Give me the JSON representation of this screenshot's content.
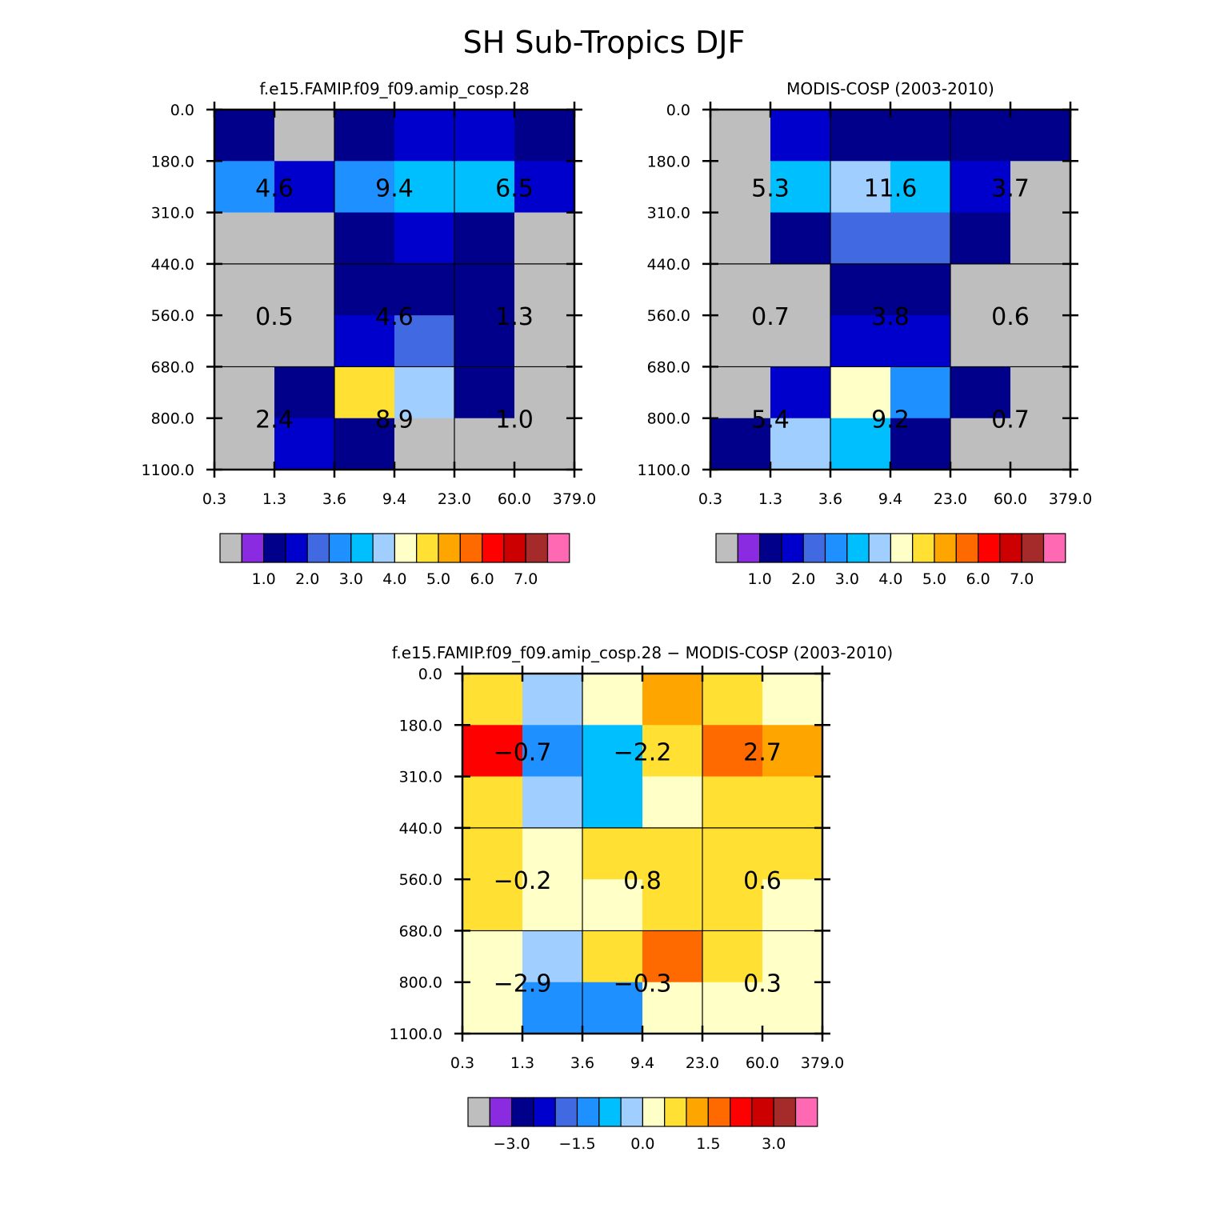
{
  "page_title": "SH Sub-Tropics DJF",
  "colors": {
    "missing": "#bebebe",
    "palette": [
      "#8a2be2",
      "#00008b",
      "#0000cd",
      "#4169e1",
      "#1e90ff",
      "#00bfff",
      "#a0cfff",
      "#ffffc8",
      "#ffe033",
      "#ffa500",
      "#ff6a00",
      "#ff0000",
      "#cc0000",
      "#a52a2a",
      "#ff69b4"
    ]
  },
  "chart_data": [
    {
      "type": "heatmap",
      "title": "f.e15.FAMIP.f09_f09.amip_cosp.28",
      "x_tick_labels": [
        "0.3",
        "1.3",
        "3.6",
        "9.4",
        "23.0",
        "60.0",
        "379.0"
      ],
      "y_tick_labels": [
        "0.0",
        "180.0",
        "310.0",
        "440.0",
        "560.0",
        "680.0",
        "800.0",
        "1100.0"
      ],
      "cells": [
        [
          1,
          -1,
          1,
          2,
          2,
          1
        ],
        [
          4,
          2,
          4,
          5,
          5,
          2
        ],
        [
          -1,
          -1,
          1,
          2,
          1,
          -1
        ],
        [
          -1,
          -1,
          1,
          1,
          1,
          -1
        ],
        [
          -1,
          -1,
          2,
          3,
          1,
          -1
        ],
        [
          -1,
          1,
          8,
          6,
          1,
          -1
        ],
        [
          -1,
          2,
          1,
          -1,
          -1,
          -1
        ]
      ],
      "cell_values_note": "palette indices (0=purple ... 14=pink); -1 = missing/grey",
      "group_labels": [
        {
          "row": 0,
          "col": 0,
          "text": "4.6"
        },
        {
          "row": 0,
          "col": 1,
          "text": "9.4"
        },
        {
          "row": 0,
          "col": 2,
          "text": "6.5"
        },
        {
          "row": 1,
          "col": 0,
          "text": "0.5"
        },
        {
          "row": 1,
          "col": 1,
          "text": "4.6"
        },
        {
          "row": 1,
          "col": 2,
          "text": "1.3"
        },
        {
          "row": 2,
          "col": 0,
          "text": "2.4"
        },
        {
          "row": 2,
          "col": 1,
          "text": "8.9"
        },
        {
          "row": 2,
          "col": 2,
          "text": "1.0"
        }
      ],
      "colorbar_labels": [
        "1.0",
        "2.0",
        "3.0",
        "4.0",
        "5.0",
        "6.0",
        "7.0"
      ]
    },
    {
      "type": "heatmap",
      "title": "MODIS-COSP (2003-2010)",
      "x_tick_labels": [
        "0.3",
        "1.3",
        "3.6",
        "9.4",
        "23.0",
        "60.0",
        "379.0"
      ],
      "y_tick_labels": [
        "0.0",
        "180.0",
        "310.0",
        "440.0",
        "560.0",
        "680.0",
        "800.0",
        "1100.0"
      ],
      "cells": [
        [
          -1,
          2,
          1,
          1,
          1,
          1
        ],
        [
          -1,
          5,
          6,
          5,
          2,
          -1
        ],
        [
          -1,
          1,
          3,
          3,
          1,
          -1
        ],
        [
          -1,
          -1,
          1,
          1,
          -1,
          -1
        ],
        [
          -1,
          -1,
          2,
          2,
          -1,
          -1
        ],
        [
          -1,
          2,
          7,
          4,
          1,
          -1
        ],
        [
          1,
          6,
          5,
          1,
          -1,
          -1
        ]
      ],
      "cell_values_note": "palette indices (0=purple ... 14=pink); -1 = missing/grey",
      "group_labels": [
        {
          "row": 0,
          "col": 0,
          "text": "5.3"
        },
        {
          "row": 0,
          "col": 1,
          "text": "11.6"
        },
        {
          "row": 0,
          "col": 2,
          "text": "3.7"
        },
        {
          "row": 1,
          "col": 0,
          "text": "0.7"
        },
        {
          "row": 1,
          "col": 1,
          "text": "3.8"
        },
        {
          "row": 1,
          "col": 2,
          "text": "0.6"
        },
        {
          "row": 2,
          "col": 0,
          "text": "5.4"
        },
        {
          "row": 2,
          "col": 1,
          "text": "9.2"
        },
        {
          "row": 2,
          "col": 2,
          "text": "0.7"
        }
      ],
      "colorbar_labels": [
        "1.0",
        "2.0",
        "3.0",
        "4.0",
        "5.0",
        "6.0",
        "7.0"
      ]
    },
    {
      "type": "heatmap",
      "title": "f.e15.FAMIP.f09_f09.amip_cosp.28 − MODIS-COSP (2003-2010)",
      "x_tick_labels": [
        "0.3",
        "1.3",
        "3.6",
        "9.4",
        "23.0",
        "60.0",
        "379.0"
      ],
      "y_tick_labels": [
        "0.0",
        "180.0",
        "310.0",
        "440.0",
        "560.0",
        "680.0",
        "800.0",
        "1100.0"
      ],
      "cells": [
        [
          8,
          6,
          7,
          9,
          8,
          7
        ],
        [
          11,
          4,
          5,
          8,
          10,
          9
        ],
        [
          8,
          6,
          5,
          7,
          8,
          8
        ],
        [
          8,
          7,
          8,
          8,
          8,
          8
        ],
        [
          8,
          7,
          7,
          8,
          8,
          7
        ],
        [
          7,
          6,
          8,
          10,
          8,
          7
        ],
        [
          7,
          4,
          4,
          7,
          7,
          7
        ]
      ],
      "cell_values_note": "palette indices (0=purple ... 14=pink); -1 = missing/grey",
      "group_labels": [
        {
          "row": 0,
          "col": 0,
          "text": "−0.7"
        },
        {
          "row": 0,
          "col": 1,
          "text": "−2.2"
        },
        {
          "row": 0,
          "col": 2,
          "text": "2.7"
        },
        {
          "row": 1,
          "col": 0,
          "text": "−0.2"
        },
        {
          "row": 1,
          "col": 1,
          "text": "0.8"
        },
        {
          "row": 1,
          "col": 2,
          "text": "0.6"
        },
        {
          "row": 2,
          "col": 0,
          "text": "−2.9"
        },
        {
          "row": 2,
          "col": 1,
          "text": "−0.3"
        },
        {
          "row": 2,
          "col": 2,
          "text": "0.3"
        }
      ],
      "colorbar_labels": [
        "−3.0",
        "−1.5",
        "0.0",
        "1.5",
        "3.0"
      ]
    }
  ]
}
